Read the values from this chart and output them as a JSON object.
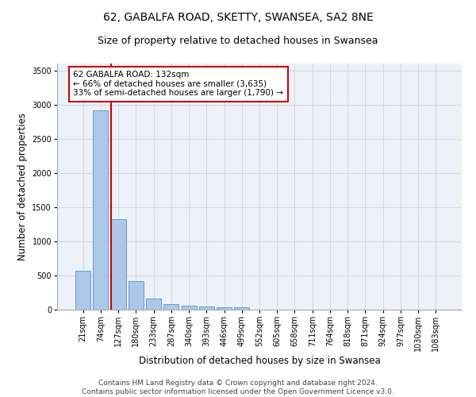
{
  "title": "62, GABALFA ROAD, SKETTY, SWANSEA, SA2 8NE",
  "subtitle": "Size of property relative to detached houses in Swansea",
  "xlabel": "Distribution of detached houses by size in Swansea",
  "ylabel": "Number of detached properties",
  "bin_labels": [
    "21sqm",
    "74sqm",
    "127sqm",
    "180sqm",
    "233sqm",
    "287sqm",
    "340sqm",
    "393sqm",
    "446sqm",
    "499sqm",
    "552sqm",
    "605sqm",
    "658sqm",
    "711sqm",
    "764sqm",
    "818sqm",
    "871sqm",
    "924sqm",
    "977sqm",
    "1030sqm",
    "1083sqm"
  ],
  "bar_values": [
    570,
    2920,
    1320,
    420,
    160,
    80,
    60,
    50,
    40,
    40,
    0,
    0,
    0,
    0,
    0,
    0,
    0,
    0,
    0,
    0,
    0
  ],
  "bar_color": "#aec6e8",
  "bar_edgecolor": "#5a9fd4",
  "highlight_bin": 2,
  "highlight_line_color": "#cc0000",
  "annotation_text": "62 GABALFA ROAD: 132sqm\n← 66% of detached houses are smaller (3,635)\n33% of semi-detached houses are larger (1,790) →",
  "annotation_box_color": "#ffffff",
  "annotation_box_edgecolor": "#cc0000",
  "ylim": [
    0,
    3600
  ],
  "yticks": [
    0,
    500,
    1000,
    1500,
    2000,
    2500,
    3000,
    3500
  ],
  "grid_color": "#d0d8e8",
  "background_color": "#eef2f8",
  "footer_text": "Contains HM Land Registry data © Crown copyright and database right 2024.\nContains public sector information licensed under the Open Government Licence v3.0.",
  "title_fontsize": 10,
  "subtitle_fontsize": 9,
  "axis_label_fontsize": 8.5,
  "tick_fontsize": 7,
  "annotation_fontsize": 7.5,
  "footer_fontsize": 6.5
}
